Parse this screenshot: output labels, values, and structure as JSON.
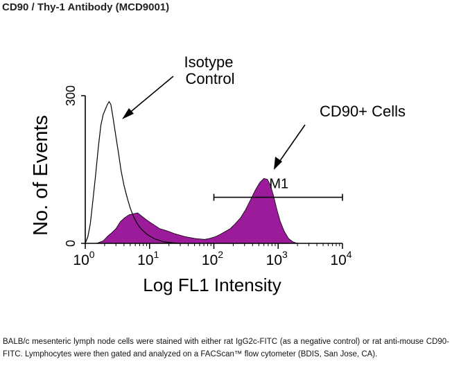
{
  "title": "CD90 / Thy-1 Antibody (MCD9001)",
  "caption": "BALB/c mesenteric lymph node cells were stained with either rat IgG2c-FITC (as a negative control) or rat anti-mouse CD90-FITC. Lymphocytes were then gated and analyzed on a FACScan™ flow cytometer (BDIS, San Jose, CA).",
  "colors": {
    "fill": "#9b1b9b",
    "line": "#000000",
    "text": "#000000"
  },
  "chart_data": {
    "type": "area",
    "xlabel": "Log FL1 Intensity",
    "ylabel": "No. of Events",
    "x_scale": "log",
    "xlim": [
      1,
      10000
    ],
    "ylim": [
      0,
      300
    ],
    "x_ticks": [
      {
        "base": "10",
        "exp": "0",
        "value": 1
      },
      {
        "base": "10",
        "exp": "1",
        "value": 10
      },
      {
        "base": "10",
        "exp": "2",
        "value": 100
      },
      {
        "base": "10",
        "exp": "3",
        "value": 1000
      },
      {
        "base": "10",
        "exp": "4",
        "value": 10000
      }
    ],
    "y_ticks": [
      {
        "label": "0",
        "value": 0
      },
      {
        "label": "300",
        "value": 300
      }
    ],
    "series": [
      {
        "name": "CD90+ Cells",
        "style": "filled",
        "x": [
          1.5,
          1.9,
          2.2,
          2.6,
          3.0,
          3.5,
          4.1,
          4.8,
          5.6,
          6.5,
          7.6,
          8.9,
          10.4,
          12.2,
          14.3,
          17,
          20,
          24,
          29,
          35,
          42,
          50,
          60,
          72,
          86,
          103,
          124,
          150,
          180,
          215,
          260,
          310,
          370,
          440,
          520,
          600,
          680,
          760,
          850,
          950,
          1080,
          1250,
          1450,
          1700,
          2000
        ],
        "values": [
          0,
          5,
          14,
          22,
          30,
          44,
          52,
          58,
          60,
          62,
          55,
          48,
          42,
          36,
          30,
          27,
          24,
          20,
          17,
          14,
          12,
          10,
          9,
          8,
          10,
          13,
          18,
          24,
          30,
          40,
          52,
          68,
          88,
          108,
          124,
          132,
          130,
          118,
          96,
          70,
          44,
          24,
          10,
          3,
          0
        ]
      },
      {
        "name": "Isotype Control",
        "style": "outline",
        "x": [
          1.0,
          1.1,
          1.2,
          1.3,
          1.45,
          1.6,
          1.75,
          1.9,
          2.05,
          2.2,
          2.35,
          2.5,
          2.65,
          2.8,
          3.0,
          3.3,
          3.6,
          4.0,
          4.5,
          5.0,
          5.6,
          6.3,
          7.0,
          8.0,
          9.0,
          10.0,
          11.0,
          12.0,
          13.5,
          15.0,
          17.0,
          20.0,
          24.0,
          30.0
        ],
        "values": [
          0,
          14,
          40,
          82,
          140,
          196,
          240,
          262,
          272,
          282,
          288,
          282,
          262,
          242,
          216,
          182,
          148,
          118,
          92,
          72,
          55,
          42,
          33,
          25,
          19,
          15,
          12,
          9,
          7,
          5,
          3,
          2,
          1,
          0
        ]
      }
    ],
    "annotations": [
      {
        "text": "Isotype Control",
        "lines": [
          "Isotype",
          "Control"
        ],
        "points_to": "Isotype Control"
      },
      {
        "text": "CD90+ Cells",
        "points_to": "CD90+ Cells"
      }
    ],
    "marker": {
      "label": "M1",
      "x_range": [
        100,
        10000
      ],
      "y": 140
    }
  }
}
